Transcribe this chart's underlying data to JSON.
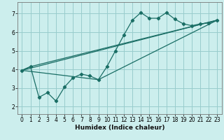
{
  "title": "",
  "xlabel": "Humidex (Indice chaleur)",
  "bg_color": "#cceeed",
  "grid_color": "#99cccc",
  "line_color": "#1a6e65",
  "xlim": [
    -0.5,
    23.5
  ],
  "ylim": [
    1.6,
    7.6
  ],
  "xticks": [
    0,
    1,
    2,
    3,
    4,
    5,
    6,
    7,
    8,
    9,
    10,
    11,
    12,
    13,
    14,
    15,
    16,
    17,
    18,
    19,
    20,
    21,
    22,
    23
  ],
  "yticks": [
    2,
    3,
    4,
    5,
    6,
    7
  ],
  "line1_x": [
    0,
    1,
    2,
    3,
    4,
    5,
    6,
    7,
    8,
    9,
    10,
    11,
    12,
    13,
    14,
    15,
    16,
    17,
    18,
    19,
    20,
    21,
    22,
    23
  ],
  "line1_y": [
    3.95,
    4.15,
    2.5,
    2.75,
    2.3,
    3.05,
    3.55,
    3.75,
    3.65,
    3.45,
    4.15,
    5.0,
    5.85,
    6.65,
    7.05,
    6.75,
    6.75,
    7.05,
    6.7,
    6.45,
    6.35,
    6.45,
    6.5,
    6.65
  ],
  "trend1_x": [
    0,
    23
  ],
  "trend1_y": [
    3.95,
    6.65
  ],
  "trend2_x": [
    0,
    9,
    23
  ],
  "trend2_y": [
    3.95,
    3.45,
    6.65
  ],
  "trend3_x": [
    0,
    1,
    23
  ],
  "trend3_y": [
    3.95,
    4.15,
    6.65
  ]
}
